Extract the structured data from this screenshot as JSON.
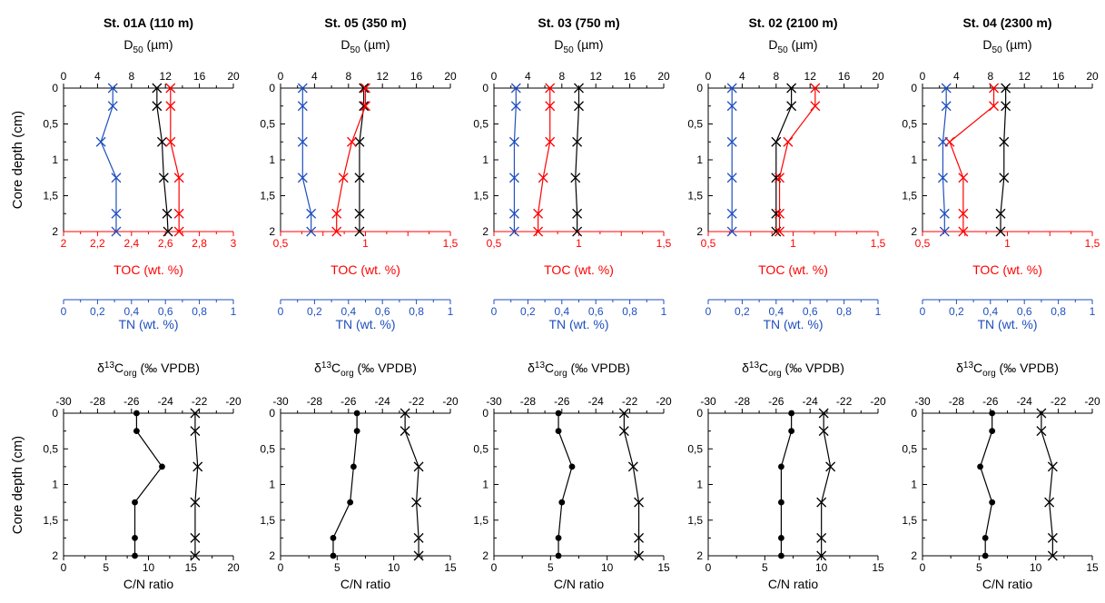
{
  "colors": {
    "d50": "#000000",
    "toc": "#ff0000",
    "tn": "#1f4fbf",
    "d13c": "#000000",
    "cn": "#000000"
  },
  "labels": {
    "d50_prefix": "D",
    "d50_sub": "50",
    "d50_suffix": " (µm)",
    "toc_axis": "TOC (wt. %)",
    "tn_axis": "TN (wt. %)",
    "core_depth": "Core depth (cm)",
    "d13c_prefix": "δ",
    "d13c_sup": "13",
    "d13c_mid": "C",
    "d13c_sub": "org",
    "d13c_suffix": " (‰ VPDB)",
    "cn_axis": "C/N ratio"
  },
  "chart_data": [
    {
      "type": "line",
      "panel": "sediment",
      "title": "St. 01A (110 m)",
      "depth_ticks": [
        "0",
        "0,5",
        "1",
        "1,5",
        "2"
      ],
      "depth": [
        0,
        0.25,
        0.75,
        1.25,
        1.75,
        2
      ],
      "d50_axis": {
        "range": [
          0,
          20
        ],
        "ticks": [
          "0",
          "4",
          "8",
          "12",
          "16",
          "20"
        ]
      },
      "toc_axis": {
        "range": [
          2,
          3
        ],
        "ticks": [
          "2",
          "2,2",
          "2,4",
          "2,6",
          "2,8",
          "3"
        ]
      },
      "tn_axis": {
        "range": [
          0,
          1
        ],
        "ticks": [
          "0",
          "0,2",
          "0,4",
          "0,6",
          "0,8",
          "1"
        ]
      },
      "series": [
        {
          "name": "D50",
          "axis": "d50",
          "depth": [
            0,
            0.25,
            0.75,
            1.25,
            1.75,
            2
          ],
          "values": [
            11.0,
            11.0,
            11.6,
            11.8,
            12.2,
            12.3
          ]
        },
        {
          "name": "TOC",
          "axis": "toc",
          "depth": [
            0,
            0.25,
            0.75,
            1.25,
            1.75,
            2
          ],
          "values": [
            2.63,
            2.63,
            2.63,
            2.68,
            2.68,
            2.68
          ]
        },
        {
          "name": "TN",
          "axis": "tn",
          "depth": [
            0,
            0.25,
            0.75,
            1.25,
            1.75,
            2
          ],
          "values": [
            0.29,
            0.29,
            0.22,
            0.31,
            0.31,
            0.31
          ]
        }
      ]
    },
    {
      "type": "line",
      "panel": "sediment",
      "title": "St. 05 (350 m)",
      "depth_ticks": [
        "0",
        "0,5",
        "1",
        "1,5",
        "2"
      ],
      "depth": [
        0,
        0.25,
        0.75,
        1.25,
        1.75,
        2
      ],
      "d50_axis": {
        "range": [
          0,
          20
        ],
        "ticks": [
          "0",
          "4",
          "8",
          "12",
          "16",
          "20"
        ]
      },
      "toc_axis": {
        "range": [
          0.5,
          1.5
        ],
        "ticks": [
          "0,5",
          "",
          "1",
          "",
          "1,5"
        ]
      },
      "tn_axis": {
        "range": [
          0,
          1
        ],
        "ticks": [
          "0",
          "0,2",
          "0,4",
          "0,6",
          "0,8",
          "1"
        ]
      },
      "series": [
        {
          "name": "D50",
          "axis": "d50",
          "depth": [
            0,
            0.25,
            0.75,
            1.25,
            1.75,
            2
          ],
          "values": [
            9.8,
            9.8,
            9.3,
            9.3,
            9.3,
            9.3
          ]
        },
        {
          "name": "TOC",
          "axis": "toc",
          "depth": [
            0,
            0.25,
            0.75,
            1.25,
            1.75,
            2
          ],
          "values": [
            1.0,
            1.0,
            0.92,
            0.87,
            0.83,
            0.83
          ]
        },
        {
          "name": "TN",
          "axis": "tn",
          "depth": [
            0,
            0.25,
            0.75,
            1.25,
            1.75,
            2
          ],
          "values": [
            0.13,
            0.13,
            0.13,
            0.13,
            0.18,
            0.18
          ]
        }
      ]
    },
    {
      "type": "line",
      "panel": "sediment",
      "title": "St. 03 (750 m)",
      "depth_ticks": [
        "0",
        "0,5",
        "1",
        "1,5",
        "2"
      ],
      "depth": [
        0,
        0.25,
        0.75,
        1.25,
        1.75,
        2
      ],
      "d50_axis": {
        "range": [
          0,
          20
        ],
        "ticks": [
          "0",
          "4",
          "8",
          "12",
          "16",
          "20"
        ]
      },
      "toc_axis": {
        "range": [
          0.5,
          1.5
        ],
        "ticks": [
          "0,5",
          "",
          "1",
          "",
          "1,5"
        ]
      },
      "tn_axis": {
        "range": [
          0,
          1
        ],
        "ticks": [
          "0",
          "0,2",
          "0,4",
          "0,6",
          "0,8",
          "1"
        ]
      },
      "series": [
        {
          "name": "D50",
          "axis": "d50",
          "depth": [
            0,
            0.25,
            0.75,
            1.25,
            1.75,
            2
          ],
          "values": [
            10.0,
            10.0,
            9.8,
            9.6,
            9.8,
            9.8
          ]
        },
        {
          "name": "TOC",
          "axis": "toc",
          "depth": [
            0,
            0.25,
            0.75,
            1.25,
            1.75,
            2
          ],
          "values": [
            0.83,
            0.83,
            0.83,
            0.79,
            0.76,
            0.76
          ]
        },
        {
          "name": "TN",
          "axis": "tn",
          "depth": [
            0,
            0.25,
            0.75,
            1.25,
            1.75,
            2
          ],
          "values": [
            0.13,
            0.13,
            0.12,
            0.12,
            0.12,
            0.12
          ]
        }
      ]
    },
    {
      "type": "line",
      "panel": "sediment",
      "title": "St. 02 (2100 m)",
      "depth_ticks": [
        "0",
        "0,5",
        "1",
        "1,5",
        "2"
      ],
      "depth": [
        0,
        0.25,
        0.75,
        1.25,
        1.75,
        2
      ],
      "d50_axis": {
        "range": [
          0,
          20
        ],
        "ticks": [
          "0",
          "4",
          "8",
          "12",
          "16",
          "20"
        ]
      },
      "toc_axis": {
        "range": [
          0.5,
          1.5
        ],
        "ticks": [
          "0,5",
          "",
          "1",
          "",
          "1,5"
        ]
      },
      "tn_axis": {
        "range": [
          0,
          1
        ],
        "ticks": [
          "0",
          "0,2",
          "0,4",
          "0,6",
          "0,8",
          "1"
        ]
      },
      "series": [
        {
          "name": "D50",
          "axis": "d50",
          "depth": [
            0,
            0.25,
            0.75,
            1.25,
            1.75,
            2
          ],
          "values": [
            9.8,
            9.8,
            8.0,
            8.0,
            8.0,
            8.0
          ]
        },
        {
          "name": "TOC",
          "axis": "toc",
          "depth": [
            0,
            0.25,
            0.75,
            1.25,
            1.75,
            2
          ],
          "values": [
            1.13,
            1.13,
            0.97,
            0.92,
            0.92,
            0.92
          ]
        },
        {
          "name": "TN",
          "axis": "tn",
          "depth": [
            0,
            0.25,
            0.75,
            1.25,
            1.75,
            2
          ],
          "values": [
            0.14,
            0.14,
            0.14,
            0.14,
            0.14,
            0.14
          ]
        }
      ]
    },
    {
      "type": "line",
      "panel": "sediment",
      "title": "St. 04 (2300 m)",
      "depth_ticks": [
        "0",
        "0,5",
        "1",
        "1,5",
        "2"
      ],
      "depth": [
        0,
        0.25,
        0.75,
        1.25,
        1.75,
        2
      ],
      "d50_axis": {
        "range": [
          0,
          20
        ],
        "ticks": [
          "0",
          "4",
          "8",
          "12",
          "16",
          "20"
        ]
      },
      "toc_axis": {
        "range": [
          0.5,
          1.5
        ],
        "ticks": [
          "0,5",
          "",
          "1",
          "",
          "1,5"
        ]
      },
      "tn_axis": {
        "range": [
          0,
          1
        ],
        "ticks": [
          "0",
          "0,2",
          "0,4",
          "0,6",
          "0,8",
          "1"
        ]
      },
      "series": [
        {
          "name": "D50",
          "axis": "d50",
          "depth": [
            0,
            0.25,
            0.75,
            1.25,
            1.75,
            2
          ],
          "values": [
            9.8,
            9.8,
            9.6,
            9.6,
            9.2,
            9.2
          ]
        },
        {
          "name": "TOC",
          "axis": "toc",
          "depth": [
            0,
            0.25,
            0.75,
            1.25,
            1.75,
            2
          ],
          "values": [
            0.92,
            0.92,
            0.66,
            0.74,
            0.74,
            0.74
          ]
        },
        {
          "name": "TN",
          "axis": "tn",
          "depth": [
            0,
            0.25,
            0.75,
            1.25,
            1.75,
            2
          ],
          "values": [
            0.14,
            0.14,
            0.12,
            0.12,
            0.13,
            0.13
          ]
        }
      ]
    },
    {
      "type": "line",
      "panel": "isotope",
      "depth_ticks": [
        "0",
        "0,5",
        "1",
        "1,5",
        "2"
      ],
      "depth": [
        0,
        0.25,
        0.75,
        1.25,
        1.75,
        2
      ],
      "d13c_axis": {
        "range": [
          -30,
          -20
        ],
        "ticks": [
          "-30",
          "-28",
          "-26",
          "-24",
          "-22",
          "-20"
        ]
      },
      "cn_axis": {
        "range": [
          0,
          20
        ],
        "ticks": [
          "0",
          "5",
          "10",
          "15",
          "20"
        ]
      },
      "series": [
        {
          "name": "d13C",
          "axis": "d13c",
          "depth": [
            0,
            0.25,
            0.75,
            1.25,
            1.75,
            2
          ],
          "values": [
            -25.7,
            -25.7,
            -24.2,
            -25.8,
            -25.8,
            -25.8
          ]
        },
        {
          "name": "C/N",
          "axis": "cn",
          "depth": [
            0,
            0.25,
            0.75,
            1.25,
            1.75,
            2
          ],
          "values": [
            15.5,
            15.5,
            15.8,
            15.5,
            15.5,
            15.5
          ]
        }
      ]
    },
    {
      "type": "line",
      "panel": "isotope",
      "depth_ticks": [
        "0",
        "0,5",
        "1",
        "1,5",
        "2"
      ],
      "depth": [
        0,
        0.25,
        0.75,
        1.25,
        1.75,
        2
      ],
      "d13c_axis": {
        "range": [
          -30,
          -20
        ],
        "ticks": [
          "-30",
          "-28",
          "-26",
          "-24",
          "-22",
          "-20"
        ]
      },
      "cn_axis": {
        "range": [
          0,
          15
        ],
        "ticks": [
          "0",
          "5",
          "10",
          "15"
        ]
      },
      "series": [
        {
          "name": "d13C",
          "axis": "d13c",
          "depth": [
            0,
            0.25,
            0.75,
            1.25,
            1.75,
            2
          ],
          "values": [
            -25.5,
            -25.5,
            -25.7,
            -25.9,
            -26.9,
            -26.9
          ]
        },
        {
          "name": "C/N",
          "axis": "cn",
          "depth": [
            0,
            0.25,
            0.75,
            1.25,
            1.75,
            2
          ],
          "values": [
            11.0,
            11.0,
            12.2,
            12.0,
            12.2,
            12.2
          ]
        }
      ]
    },
    {
      "type": "line",
      "panel": "isotope",
      "depth_ticks": [
        "0",
        "0,5",
        "1",
        "1,5",
        "2"
      ],
      "depth": [
        0,
        0.25,
        0.75,
        1.25,
        1.75,
        2
      ],
      "d13c_axis": {
        "range": [
          -30,
          -20
        ],
        "ticks": [
          "-30",
          "-28",
          "-26",
          "-24",
          "-22",
          "-20"
        ]
      },
      "cn_axis": {
        "range": [
          0,
          15
        ],
        "ticks": [
          "0",
          "5",
          "10",
          "15"
        ]
      },
      "series": [
        {
          "name": "d13C",
          "axis": "d13c",
          "depth": [
            0,
            0.25,
            0.75,
            1.25,
            1.75,
            2
          ],
          "values": [
            -26.2,
            -26.2,
            -25.4,
            -26.0,
            -26.2,
            -26.2
          ]
        },
        {
          "name": "C/N",
          "axis": "cn",
          "depth": [
            0,
            0.25,
            0.75,
            1.25,
            1.75,
            2
          ],
          "values": [
            11.5,
            11.5,
            12.3,
            12.8,
            12.8,
            12.8
          ]
        }
      ]
    },
    {
      "type": "line",
      "panel": "isotope",
      "depth_ticks": [
        "0",
        "0,5",
        "1",
        "1,5",
        "2"
      ],
      "depth": [
        0,
        0.25,
        0.75,
        1.25,
        1.75,
        2
      ],
      "d13c_axis": {
        "range": [
          -30,
          -20
        ],
        "ticks": [
          "-30",
          "-28",
          "-26",
          "-24",
          "-22",
          "-20"
        ]
      },
      "cn_axis": {
        "range": [
          0,
          15
        ],
        "ticks": [
          "0",
          "5",
          "10",
          "15"
        ]
      },
      "series": [
        {
          "name": "d13C",
          "axis": "d13c",
          "depth": [
            0,
            0.25,
            0.75,
            1.25,
            1.75,
            2
          ],
          "values": [
            -25.1,
            -25.1,
            -25.7,
            -25.7,
            -25.7,
            -25.7
          ]
        },
        {
          "name": "C/N",
          "axis": "cn",
          "depth": [
            0,
            0.25,
            0.75,
            1.25,
            1.75,
            2
          ],
          "values": [
            10.2,
            10.2,
            10.8,
            10.0,
            10.0,
            10.0
          ]
        }
      ]
    },
    {
      "type": "line",
      "panel": "isotope",
      "depth_ticks": [
        "0",
        "0,5",
        "1",
        "1,5",
        "2"
      ],
      "depth": [
        0,
        0.25,
        0.75,
        1.25,
        1.75,
        2
      ],
      "d13c_axis": {
        "range": [
          -30,
          -20
        ],
        "ticks": [
          "-30",
          "-28",
          "-26",
          "-24",
          "-22",
          "-20"
        ]
      },
      "cn_axis": {
        "range": [
          0,
          15
        ],
        "ticks": [
          "0",
          "5",
          "10",
          "15"
        ]
      },
      "series": [
        {
          "name": "d13C",
          "axis": "d13c",
          "depth": [
            0,
            0.25,
            0.75,
            1.25,
            1.75,
            2
          ],
          "values": [
            -25.9,
            -25.9,
            -26.6,
            -25.9,
            -26.3,
            -26.3
          ]
        },
        {
          "name": "C/N",
          "axis": "cn",
          "depth": [
            0,
            0.25,
            0.75,
            1.25,
            1.75,
            2
          ],
          "values": [
            10.5,
            10.5,
            11.5,
            11.2,
            11.5,
            11.5
          ]
        }
      ]
    }
  ]
}
